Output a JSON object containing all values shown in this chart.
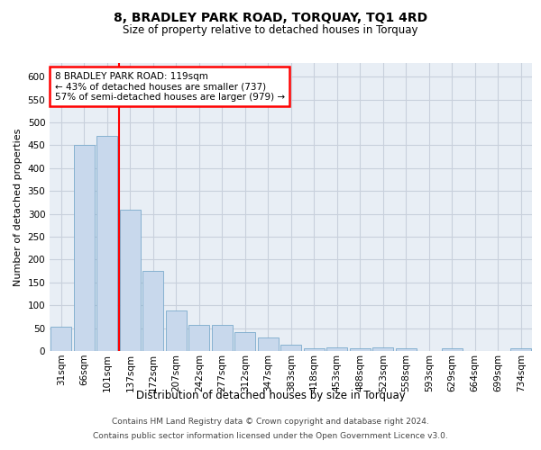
{
  "title": "8, BRADLEY PARK ROAD, TORQUAY, TQ1 4RD",
  "subtitle": "Size of property relative to detached houses in Torquay",
  "xlabel": "Distribution of detached houses by size in Torquay",
  "ylabel": "Number of detached properties",
  "bar_color": "#c8d8ec",
  "bar_edge_color": "#7aaacc",
  "grid_color": "#c8d0dc",
  "background_color": "#e8eef5",
  "categories": [
    "31sqm",
    "66sqm",
    "101sqm",
    "137sqm",
    "172sqm",
    "207sqm",
    "242sqm",
    "277sqm",
    "312sqm",
    "347sqm",
    "383sqm",
    "418sqm",
    "453sqm",
    "488sqm",
    "523sqm",
    "558sqm",
    "593sqm",
    "629sqm",
    "664sqm",
    "699sqm",
    "734sqm"
  ],
  "values": [
    54,
    450,
    470,
    310,
    175,
    88,
    58,
    58,
    42,
    30,
    14,
    6,
    8,
    6,
    8,
    6,
    0,
    6,
    0,
    0,
    6
  ],
  "vline_x": 2.5,
  "annotation_title": "8 BRADLEY PARK ROAD: 119sqm",
  "annotation_line1": "← 43% of detached houses are smaller (737)",
  "annotation_line2": "57% of semi-detached houses are larger (979) →",
  "annotation_box_color": "white",
  "annotation_box_edge_color": "red",
  "vline_color": "red",
  "footer_line1": "Contains HM Land Registry data © Crown copyright and database right 2024.",
  "footer_line2": "Contains public sector information licensed under the Open Government Licence v3.0.",
  "ylim": [
    0,
    630
  ],
  "yticks": [
    0,
    50,
    100,
    150,
    200,
    250,
    300,
    350,
    400,
    450,
    500,
    550,
    600
  ]
}
